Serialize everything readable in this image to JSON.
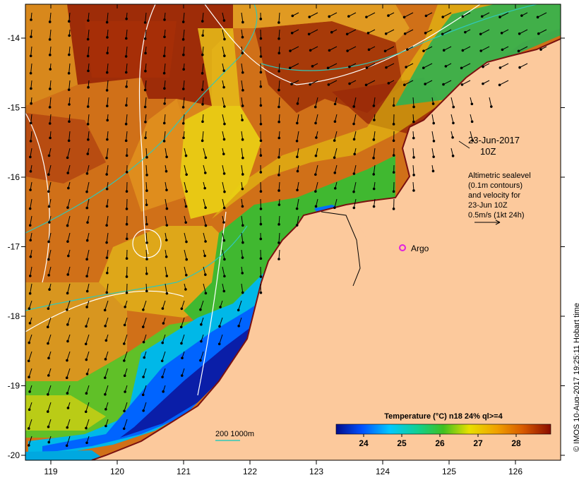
{
  "map": {
    "lon_ticks": [
      "119",
      "120",
      "121",
      "122",
      "123",
      "124",
      "125",
      "126"
    ],
    "lat_ticks": [
      "-14",
      "-15",
      "-16",
      "-17",
      "-18",
      "-19",
      "-20"
    ],
    "date_label": "23-Jun-2017",
    "time_label": "10Z",
    "altimetry_note": [
      "Altimetric sealevel",
      "(0.1m contours)",
      "and velocity for",
      "23-Jun 10Z",
      "0.5m/s (1kt 24h)"
    ],
    "argo_label": "Argo",
    "bathymetry_label": "200  1000m",
    "colorbar": {
      "title": "Temperature (°C) n18 24% ql>=4",
      "tick_labels": [
        "24",
        "25",
        "26",
        "27",
        "28"
      ]
    },
    "credit": "© IMOS 10-Aug-2017 19:25:11 Hobart time",
    "colors": {
      "land": "#fcc99c",
      "argo_marker": "#e020e0",
      "bathymetry_contour": "#30c8b8",
      "sealevel_contour": "#ffffff",
      "coast": "#7a1010"
    }
  }
}
